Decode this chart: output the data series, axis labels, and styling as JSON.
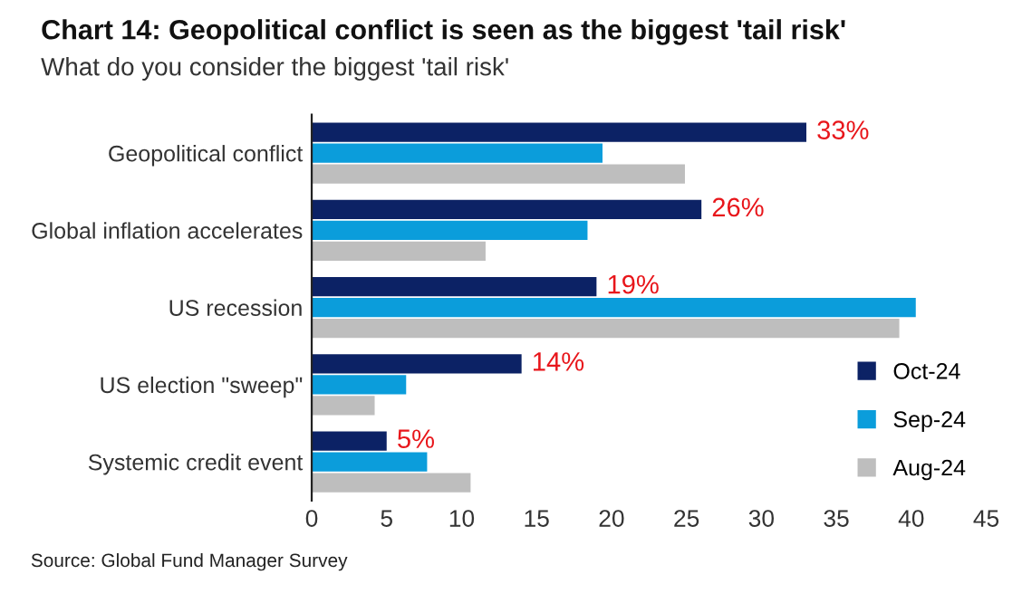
{
  "chart_data": {
    "type": "bar",
    "orientation": "horizontal",
    "title": "Chart 14: Geopolitical conflict is seen as the biggest 'tail risk'",
    "subtitle": "What do you consider the biggest 'tail risk'",
    "categories": [
      "Geopolitical conflict",
      "Global inflation accelerates",
      "US recession",
      "US election \"sweep\"",
      "Systemic credit event"
    ],
    "series": [
      {
        "name": "Oct-24",
        "color": "#0c2265",
        "values": [
          33,
          26,
          19,
          14,
          5
        ],
        "value_labels": [
          "33%",
          "26%",
          "19%",
          "14%",
          "5%"
        ]
      },
      {
        "name": "Sep-24",
        "color": "#0b9ddb",
        "values": [
          19.4,
          18.4,
          40.3,
          6.3,
          7.7
        ]
      },
      {
        "name": "Aug-24",
        "color": "#bebebe",
        "values": [
          24.9,
          11.6,
          39.2,
          4.2,
          10.6
        ]
      }
    ],
    "xlim": [
      0,
      45
    ],
    "xticks": [
      0,
      5,
      10,
      15,
      20,
      25,
      30,
      35,
      40,
      45
    ],
    "grid": false,
    "legend": "bottom right",
    "annotations": [
      "Source: Global Fund Manager Survey"
    ]
  }
}
